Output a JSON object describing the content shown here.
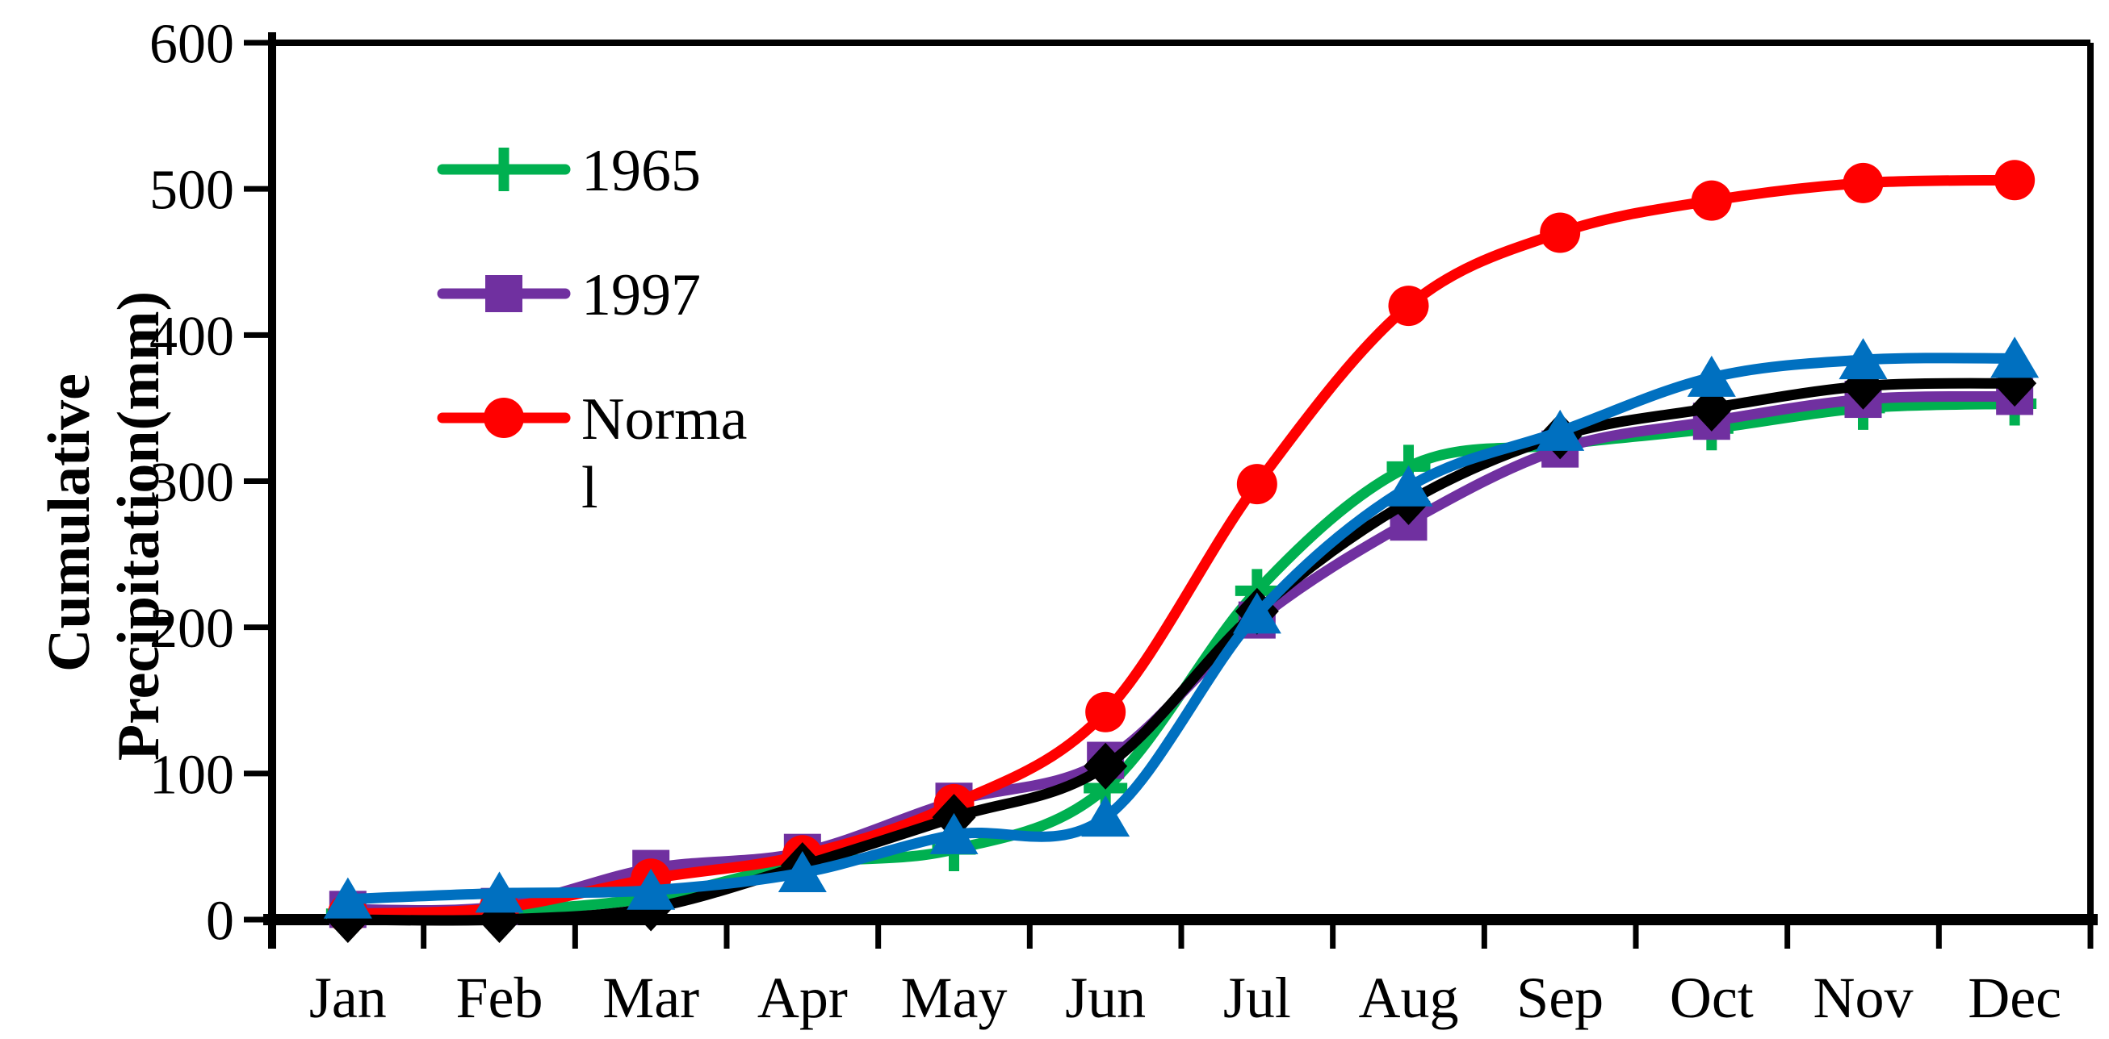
{
  "chart_data": {
    "type": "line",
    "title": "",
    "xlabel": "",
    "ylabel_lines": [
      "Cumulative",
      "Precipitation(mm)"
    ],
    "categories": [
      "Jan",
      "Feb",
      "Mar",
      "Apr",
      "May",
      "Jun",
      "Jul",
      "Aug",
      "Sep",
      "Oct",
      "Nov",
      "Dec"
    ],
    "ylim": [
      0,
      600
    ],
    "yticks": [
      0,
      100,
      200,
      300,
      400,
      500,
      600
    ],
    "grid": false,
    "frame": true,
    "legend_position": "upper-left-inside",
    "series": [
      {
        "name": "1965",
        "legend_label_lines": [
          "1965"
        ],
        "in_legend": true,
        "color": "#00B050",
        "marker": "plus",
        "values": [
          4,
          6,
          15,
          38,
          48,
          90,
          225,
          310,
          325,
          336,
          350,
          353
        ]
      },
      {
        "name": "1997",
        "legend_label_lines": [
          "1997"
        ],
        "in_legend": true,
        "color": "#7030A0",
        "marker": "square",
        "values": [
          7,
          9,
          35,
          46,
          81,
          109,
          205,
          272,
          322,
          341,
          356,
          358
        ]
      },
      {
        "name": "Normal",
        "legend_label_lines": [
          "Norma",
          "l"
        ],
        "in_legend": true,
        "color": "#FF0000",
        "marker": "circle",
        "values": [
          4,
          8,
          28,
          44,
          79,
          142,
          298,
          420,
          470,
          492,
          504,
          506
        ]
      },
      {
        "name": "unlabeled-black-diamond",
        "legend_label_lines": [],
        "in_legend": false,
        "color": "#000000",
        "marker": "diamond",
        "values": [
          0,
          0,
          8,
          37,
          70,
          105,
          211,
          286,
          331,
          350,
          365,
          367
        ]
      },
      {
        "name": "unlabeled-blue-triangle",
        "legend_label_lines": [],
        "in_legend": false,
        "color": "#0070C0",
        "marker": "triangle",
        "values": [
          14,
          18,
          20,
          32,
          58,
          70,
          209,
          296,
          334,
          371,
          383,
          384
        ]
      }
    ]
  }
}
